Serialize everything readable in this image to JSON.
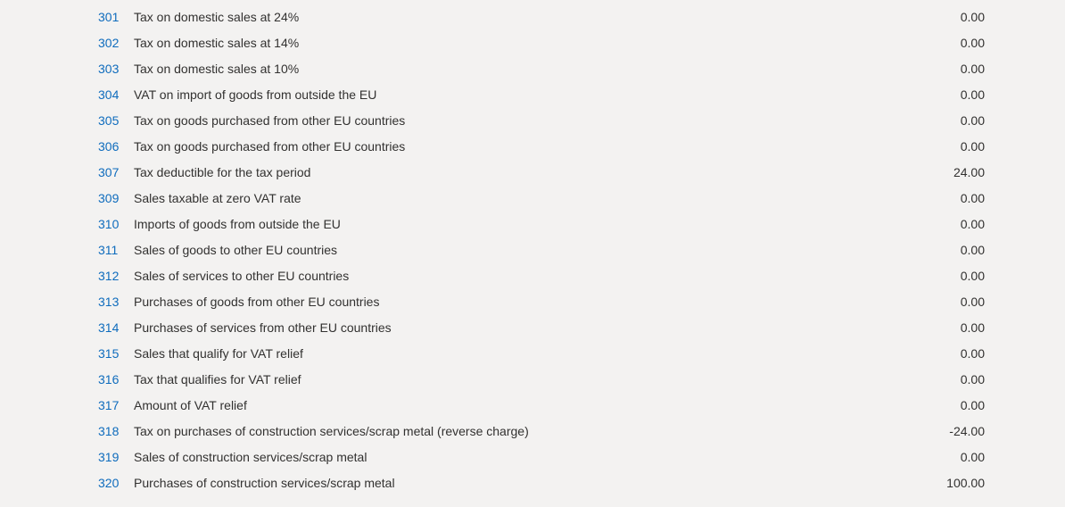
{
  "table": {
    "rows": [
      {
        "code": "301",
        "description": "Tax on domestic sales at 24%",
        "value": "0.00"
      },
      {
        "code": "302",
        "description": "Tax on domestic sales at 14%",
        "value": "0.00"
      },
      {
        "code": "303",
        "description": "Tax on domestic sales at 10%",
        "value": "0.00"
      },
      {
        "code": "304",
        "description": "VAT on import of goods from outside the EU",
        "value": "0.00"
      },
      {
        "code": "305",
        "description": "Tax on goods purchased from other EU countries",
        "value": "0.00"
      },
      {
        "code": "306",
        "description": "Tax on goods purchased from other EU countries",
        "value": "0.00"
      },
      {
        "code": "307",
        "description": "Tax deductible for the tax period",
        "value": "24.00"
      },
      {
        "code": "309",
        "description": "Sales taxable at zero VAT rate",
        "value": "0.00"
      },
      {
        "code": "310",
        "description": "Imports of goods from outside the EU",
        "value": "0.00"
      },
      {
        "code": "311",
        "description": "Sales of goods to other EU countries",
        "value": "0.00"
      },
      {
        "code": "312",
        "description": "Sales of services to other EU countries",
        "value": "0.00"
      },
      {
        "code": "313",
        "description": "Purchases of goods from other EU countries",
        "value": "0.00"
      },
      {
        "code": "314",
        "description": "Purchases of services from other EU countries",
        "value": "0.00"
      },
      {
        "code": "315",
        "description": "Sales that qualify for VAT relief",
        "value": "0.00"
      },
      {
        "code": "316",
        "description": "Tax that qualifies for VAT relief",
        "value": "0.00"
      },
      {
        "code": "317",
        "description": "Amount of VAT relief",
        "value": "0.00"
      },
      {
        "code": "318",
        "description": "Tax on purchases of construction services/scrap metal (reverse charge)",
        "value": "-24.00"
      },
      {
        "code": "319",
        "description": "Sales of construction services/scrap metal",
        "value": "0.00"
      },
      {
        "code": "320",
        "description": "Purchases of construction services/scrap metal",
        "value": "100.00"
      }
    ]
  },
  "colors": {
    "background": "#f3f2f1",
    "text": "#323130",
    "link": "#0f6cbd"
  }
}
